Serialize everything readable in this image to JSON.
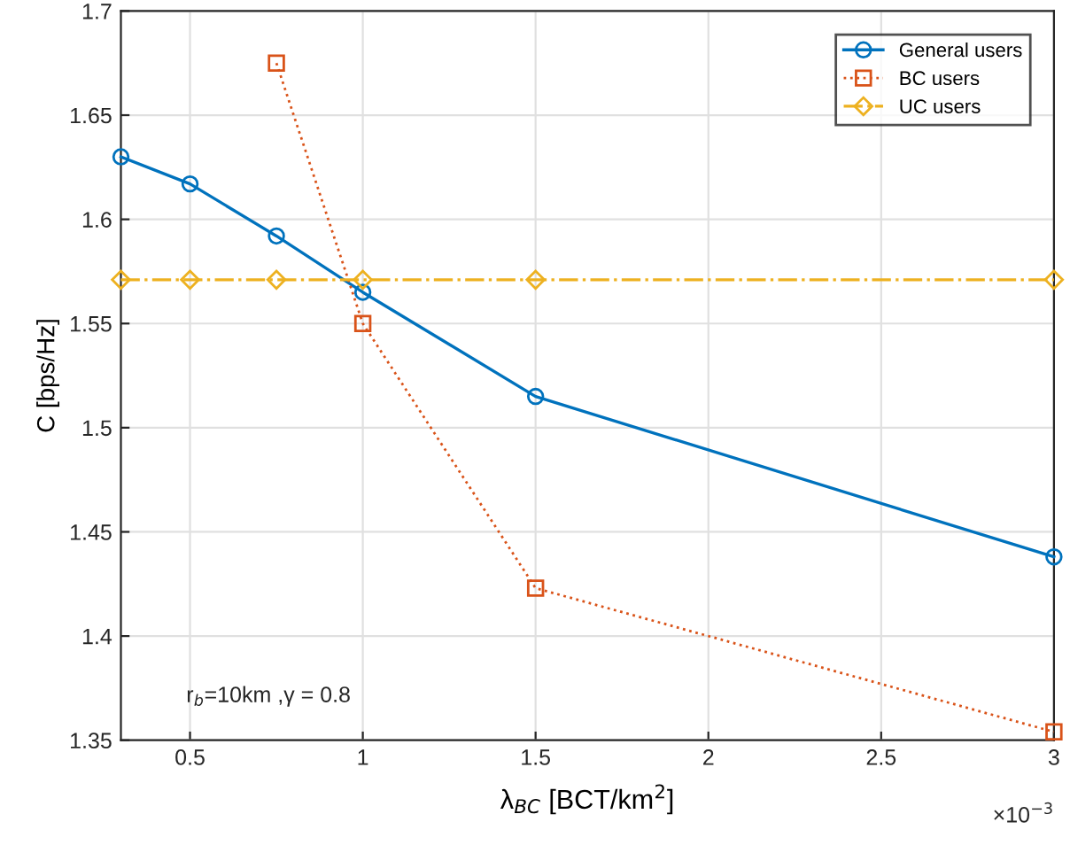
{
  "chart_data": {
    "type": "line",
    "xlabel": "λ$_{BC}$ [BCT/km$^{2}$]",
    "ylabel": "C [bps/Hz]",
    "series": [
      {
        "name": "General users",
        "color": "#0072bd",
        "marker": "circle",
        "line_style": "solid",
        "x": [
          0.3,
          0.5,
          0.75,
          1,
          1.5,
          3
        ],
        "values": [
          1.63,
          1.617,
          1.592,
          1.565,
          1.515,
          1.438
        ]
      },
      {
        "name": "BC users",
        "color": "#d95319",
        "marker": "square",
        "line_style": "dotted",
        "x": [
          0.75,
          1,
          1.5,
          3
        ],
        "values": [
          1.675,
          1.55,
          1.423,
          1.354
        ]
      },
      {
        "name": "UC users",
        "color": "#edb120",
        "marker": "diamond",
        "line_style": "dashdot",
        "x": [
          0.3,
          0.5,
          0.75,
          1,
          1.5,
          3
        ],
        "values": [
          1.571,
          1.571,
          1.571,
          1.571,
          1.571,
          1.571
        ]
      }
    ],
    "xlim": [
      0.3,
      3
    ],
    "xticks": [
      0.5,
      1,
      1.5,
      2,
      2.5,
      3
    ],
    "ylim": [
      1.35,
      1.7
    ],
    "yticks": [
      1.35,
      1.4,
      1.45,
      1.5,
      1.55,
      1.6,
      1.65,
      1.7
    ],
    "grid": true,
    "legend": "top right",
    "annotations": [
      "r$_{b}$=10km ,γ = 0.8",
      "×10$^{−3}$"
    ]
  }
}
